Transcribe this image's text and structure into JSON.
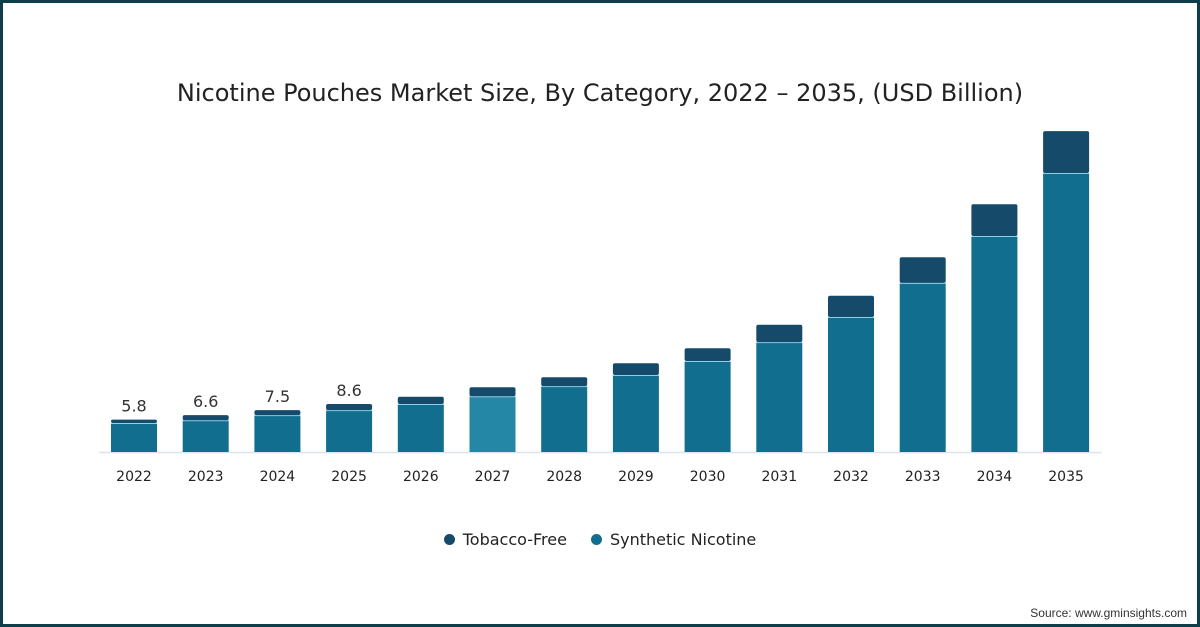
{
  "chart_data": {
    "type": "bar",
    "stacked": true,
    "title": "Nicotine Pouches Market Size, By Category, 2022 – 2035, (USD Billion)",
    "xlabel": "",
    "ylabel": "",
    "categories": [
      "2022",
      "2023",
      "2024",
      "2025",
      "2026",
      "2027",
      "2028",
      "2029",
      "2030",
      "2031",
      "2032",
      "2033",
      "2034",
      "2035"
    ],
    "series": [
      {
        "name": "Synthetic Nicotine",
        "color": "#126e8e",
        "values": [
          5.2,
          5.7,
          6.6,
          7.5,
          8.6,
          10.0,
          11.8,
          13.8,
          16.3,
          19.7,
          24.2,
          30.3,
          38.7,
          50.0
        ]
      },
      {
        "name": "Tobacco-Free",
        "color": "#154a6b",
        "values": [
          0.6,
          0.9,
          0.9,
          1.1,
          1.3,
          1.6,
          1.6,
          2.1,
          2.3,
          3.1,
          3.8,
          4.6,
          5.7,
          7.5
        ]
      }
    ],
    "data_labels": [
      "5.8",
      "6.6",
      "7.5",
      "8.6"
    ],
    "highlighted_category": "2027",
    "highlight_color": "#2487a6",
    "ylim": [
      0,
      58
    ],
    "grid": false,
    "legend_position": "bottom"
  },
  "legend": [
    {
      "label": "Tobacco-Free",
      "color": "#154a6b"
    },
    {
      "label": "Synthetic Nicotine",
      "color": "#126e8e"
    }
  ],
  "source": "Source: www.gminsights.com"
}
